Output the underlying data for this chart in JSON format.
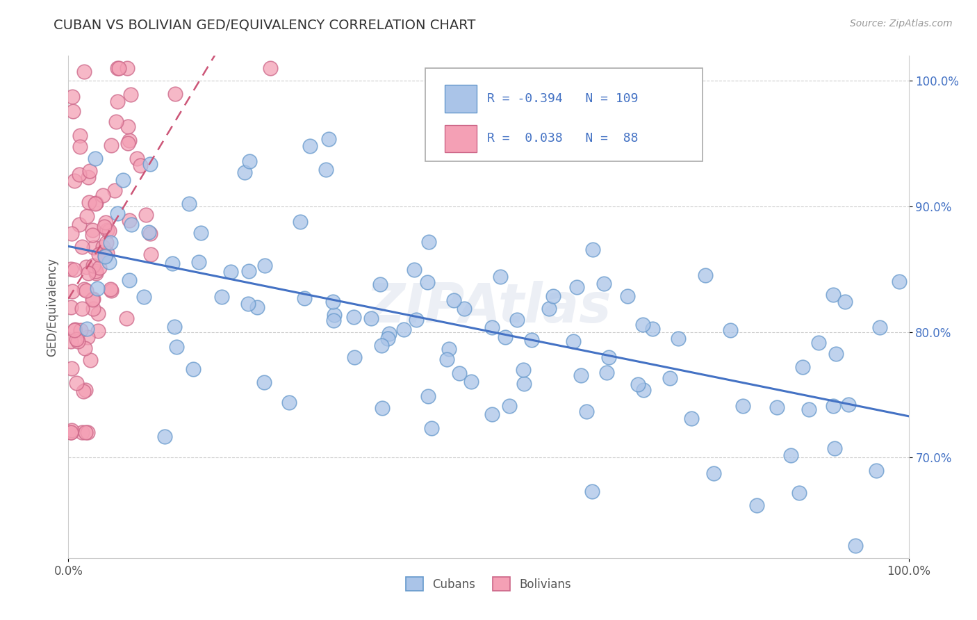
{
  "title": "CUBAN VS BOLIVIAN GED/EQUIVALENCY CORRELATION CHART",
  "title_color": "#333333",
  "source_text": "Source: ZipAtlas.com",
  "ylabel": "GED/Equivalency",
  "xlim": [
    0.0,
    1.0
  ],
  "ylim": [
    0.62,
    1.02
  ],
  "x_tick_labels": [
    "0.0%",
    "100.0%"
  ],
  "y_tick_labels": [
    "70.0%",
    "80.0%",
    "90.0%",
    "100.0%"
  ],
  "y_tick_values": [
    0.7,
    0.8,
    0.9,
    1.0
  ],
  "legend_R_cuban": "-0.394",
  "legend_N_cuban": "109",
  "legend_R_bolivian": "0.038",
  "legend_N_bolivian": "88",
  "cuban_color": "#aac4e8",
  "bolivian_color": "#f4a0b5",
  "cuban_edge": "#6699cc",
  "bolivian_edge": "#cc6688",
  "cuban_line_color": "#4472c4",
  "bolivian_line_color": "#cc5577",
  "watermark": "ZIPAtlas",
  "background_color": "#ffffff",
  "grid_color": "#cccccc"
}
